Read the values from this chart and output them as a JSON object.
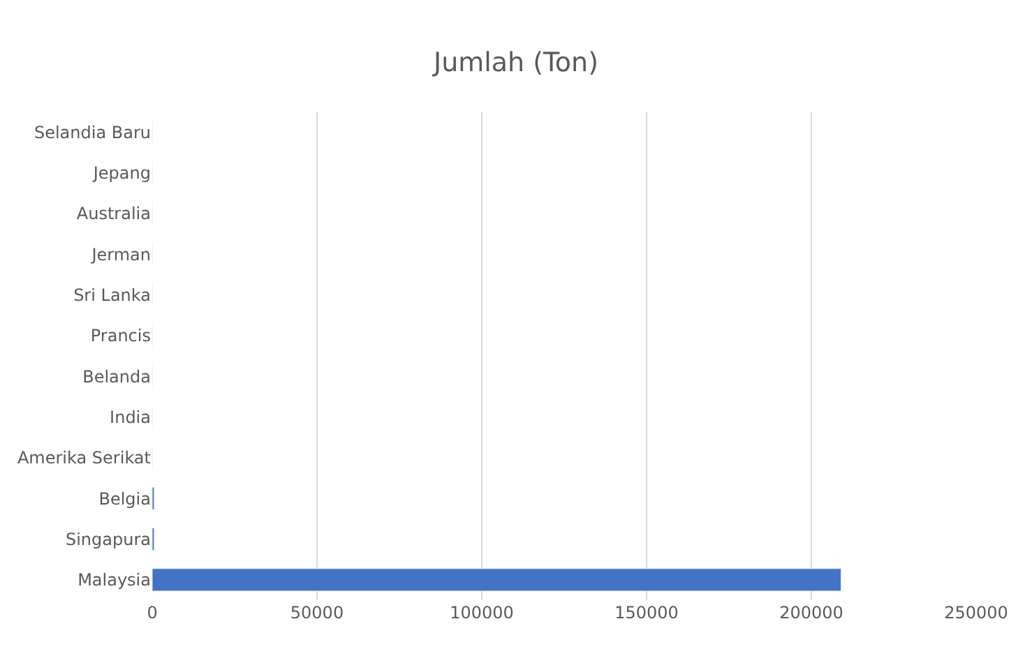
{
  "chart_data": {
    "type": "bar",
    "orientation": "horizontal",
    "title": "Jumlah (Ton)",
    "categories": [
      "Selandia Baru",
      "Jepang",
      "Australia",
      "Jerman",
      "Sri Lanka",
      "Prancis",
      "Belanda",
      "India",
      "Amerika Serikat",
      "Belgia",
      "Singapura",
      "Malaysia"
    ],
    "values": [
      0,
      0,
      0,
      0,
      0,
      0,
      0,
      0,
      0,
      600,
      600,
      209000
    ],
    "color": "#4472c4",
    "xlim": [
      0,
      250000
    ],
    "xticks": [
      0,
      50000,
      100000,
      150000,
      200000,
      250000
    ],
    "grid": "x"
  }
}
